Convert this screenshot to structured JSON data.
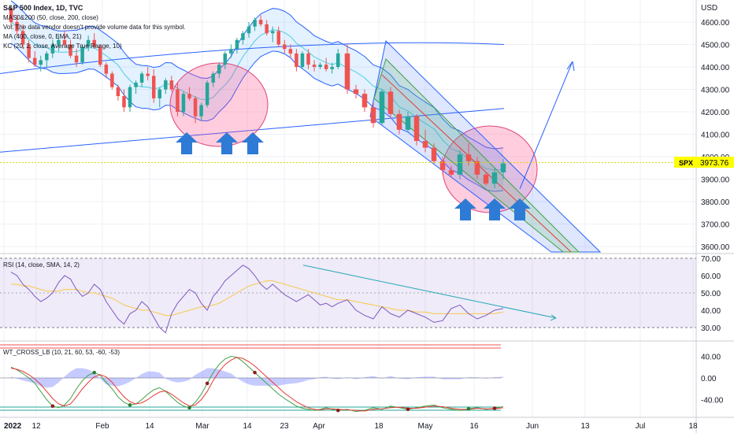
{
  "chart_data": {
    "type": "candlestick",
    "symbol": "SPX",
    "header": {
      "title": "S&P 500 Index, 1D, TVC",
      "lines": [
        "MAS0&200 (50, close, 200, close)",
        "Vol: The data vendor doesn't provide volume data for this symbol.",
        "MA (400, close, 0, EMA, 21)",
        "KC (20, 2, close, Average True Range, 10)"
      ]
    },
    "price_axis": {
      "unit_label": "USD",
      "ticks": [
        4600,
        4500,
        4400,
        4300,
        4200,
        4100,
        4000,
        3900,
        3800,
        3700,
        3600
      ],
      "tick_labels": [
        "4600.00",
        "4500.00",
        "4400.00",
        "4300.00",
        "4200.00",
        "4100.00",
        "4000.00",
        "3900.00",
        "3800.00",
        "3700.00",
        "3600.00"
      ],
      "last_price": 3973.76,
      "last_price_label": "3973.76",
      "symbol_tag": "SPX"
    },
    "time_axis": {
      "labels": [
        "2022",
        "12",
        "Feb",
        "14",
        "Mar",
        "14",
        "23",
        "Apr",
        "18",
        "May",
        "16",
        "Jun",
        "13",
        "Jul",
        "18"
      ]
    },
    "candles_ohlc": [
      [
        4660,
        4670,
        4580,
        4600
      ],
      [
        4600,
        4630,
        4540,
        4560
      ],
      [
        4560,
        4590,
        4480,
        4500
      ],
      [
        4500,
        4520,
        4420,
        4440
      ],
      [
        4440,
        4470,
        4400,
        4410
      ],
      [
        4410,
        4450,
        4380,
        4430
      ],
      [
        4430,
        4470,
        4400,
        4460
      ],
      [
        4460,
        4520,
        4440,
        4500
      ],
      [
        4500,
        4540,
        4470,
        4520
      ],
      [
        4520,
        4560,
        4490,
        4500
      ],
      [
        4500,
        4520,
        4440,
        4450
      ],
      [
        4450,
        4480,
        4400,
        4420
      ],
      [
        4420,
        4500,
        4410,
        4490
      ],
      [
        4490,
        4540,
        4470,
        4520
      ],
      [
        4520,
        4550,
        4480,
        4490
      ],
      [
        4490,
        4500,
        4400,
        4410
      ],
      [
        4410,
        4420,
        4350,
        4370
      ],
      [
        4370,
        4380,
        4300,
        4310
      ],
      [
        4310,
        4320,
        4250,
        4270
      ],
      [
        4270,
        4300,
        4200,
        4220
      ],
      [
        4220,
        4320,
        4200,
        4310
      ],
      [
        4310,
        4340,
        4280,
        4330
      ],
      [
        4330,
        4380,
        4310,
        4370
      ],
      [
        4370,
        4400,
        4340,
        4360
      ],
      [
        4360,
        4390,
        4240,
        4260
      ],
      [
        4260,
        4310,
        4220,
        4300
      ],
      [
        4300,
        4350,
        4280,
        4340
      ],
      [
        4340,
        4360,
        4290,
        4300
      ],
      [
        4300,
        4330,
        4180,
        4200
      ],
      [
        4200,
        4290,
        4180,
        4280
      ],
      [
        4280,
        4310,
        4250,
        4260
      ],
      [
        4260,
        4270,
        4150,
        4180
      ],
      [
        4180,
        4240,
        4160,
        4230
      ],
      [
        4230,
        4340,
        4220,
        4330
      ],
      [
        4330,
        4380,
        4310,
        4370
      ],
      [
        4370,
        4420,
        4350,
        4410
      ],
      [
        4410,
        4470,
        4390,
        4460
      ],
      [
        4460,
        4500,
        4440,
        4480
      ],
      [
        4480,
        4530,
        4460,
        4520
      ],
      [
        4520,
        4560,
        4500,
        4550
      ],
      [
        4550,
        4600,
        4530,
        4580
      ],
      [
        4580,
        4620,
        4560,
        4610
      ],
      [
        4610,
        4630,
        4580,
        4590
      ],
      [
        4590,
        4610,
        4540,
        4550
      ],
      [
        4550,
        4580,
        4510,
        4560
      ],
      [
        4560,
        4580,
        4490,
        4500
      ],
      [
        4500,
        4520,
        4460,
        4480
      ],
      [
        4480,
        4500,
        4440,
        4460
      ],
      [
        4460,
        4480,
        4380,
        4400
      ],
      [
        4400,
        4470,
        4390,
        4460
      ],
      [
        4460,
        4480,
        4390,
        4410
      ],
      [
        4410,
        4430,
        4380,
        4400
      ],
      [
        4400,
        4420,
        4390,
        4410
      ],
      [
        4410,
        4440,
        4380,
        4390
      ],
      [
        4390,
        4420,
        4370,
        4400
      ],
      [
        4400,
        4480,
        4390,
        4460
      ],
      [
        4460,
        4500,
        4280,
        4300
      ],
      [
        4300,
        4320,
        4260,
        4280
      ],
      [
        4280,
        4300,
        4200,
        4220
      ],
      [
        4220,
        4240,
        4130,
        4150
      ],
      [
        4150,
        4300,
        4140,
        4290
      ],
      [
        4290,
        4310,
        4170,
        4190
      ],
      [
        4190,
        4210,
        4100,
        4120
      ],
      [
        4120,
        4200,
        4110,
        4180
      ],
      [
        4180,
        4190,
        4050,
        4070
      ],
      [
        4070,
        4120,
        4020,
        4040
      ],
      [
        4040,
        4060,
        3970,
        3980
      ],
      [
        3980,
        4000,
        3920,
        3940
      ],
      [
        3940,
        3960,
        3910,
        3920
      ],
      [
        3920,
        4030,
        3900,
        4010
      ],
      [
        4010,
        4060,
        3960,
        3980
      ],
      [
        3980,
        4000,
        3900,
        3920
      ],
      [
        3920,
        3930,
        3870,
        3880
      ],
      [
        3880,
        3950,
        3860,
        3930
      ],
      [
        3930,
        3990,
        3900,
        3970
      ]
    ],
    "annotations": {
      "up_arrows": 6,
      "highlight_circles": 2,
      "projection_arrow": "up-right"
    },
    "rsi_panel": {
      "title": "RSI (14, close, SMA, 14, 2)",
      "ticks": [
        70,
        60,
        50,
        40,
        30
      ],
      "tick_labels": [
        "70.00",
        "60.00",
        "50.00",
        "40.00",
        "30.00"
      ],
      "upper_band": 70,
      "lower_band": 30,
      "rsi": [
        62,
        60,
        55,
        52,
        48,
        45,
        47,
        50,
        56,
        60,
        58,
        52,
        48,
        50,
        55,
        52,
        45,
        40,
        35,
        32,
        38,
        40,
        45,
        42,
        36,
        30,
        27,
        38,
        44,
        48,
        52,
        50,
        44,
        40,
        48,
        52,
        57,
        60,
        63,
        66,
        64,
        60,
        55,
        52,
        55,
        52,
        49,
        47,
        45,
        47,
        49,
        46,
        43,
        44,
        42,
        44,
        46,
        40,
        37,
        35,
        42,
        38,
        36,
        40,
        38,
        36,
        33,
        34,
        41,
        43,
        38,
        35,
        37,
        40,
        41
      ],
      "rsi_ma": [
        55,
        55,
        54,
        54,
        53,
        52,
        51,
        51,
        51,
        52,
        52,
        52,
        51,
        50,
        50,
        49,
        48,
        47,
        45,
        43,
        42,
        41,
        40,
        40,
        39,
        38,
        37,
        37,
        38,
        39,
        40,
        41,
        42,
        42,
        43,
        44,
        46,
        48,
        50,
        52,
        54,
        55,
        56,
        57,
        57,
        56,
        55,
        54,
        53,
        52,
        51,
        50,
        49,
        48,
        47,
        46,
        46,
        45,
        44,
        43,
        42,
        41,
        40,
        40,
        39,
        39,
        38,
        38,
        38,
        38,
        38,
        38,
        38,
        38,
        39
      ]
    },
    "wt_panel": {
      "title": "WT_CROSS_LB (10, 21, 60, 53, -60, -53)",
      "ticks": [
        40,
        0,
        -40
      ],
      "tick_labels": [
        "40.00",
        "0.00",
        "-40.00"
      ],
      "overbought_levels": [
        60,
        53
      ],
      "oversold_levels": [
        -60,
        -53
      ],
      "wt1": [
        20,
        15,
        8,
        0,
        -10,
        -25,
        -40,
        -52,
        -55,
        -50,
        -38,
        -20,
        -5,
        5,
        10,
        5,
        -8,
        -20,
        -35,
        -45,
        -50,
        -48,
        -40,
        -30,
        -22,
        -18,
        -25,
        -35,
        -45,
        -52,
        -55,
        -45,
        -30,
        -10,
        10,
        25,
        35,
        40,
        38,
        30,
        20,
        10,
        0,
        -10,
        -20,
        -30,
        -38,
        -45,
        -52,
        -56,
        -58,
        -60,
        -58,
        -55,
        -58,
        -60,
        -58,
        -62,
        -60,
        -55,
        -58,
        -52,
        -55,
        -58,
        -55,
        -52,
        -50,
        -55,
        -58,
        -60,
        -57,
        -55,
        -58,
        -56,
        -53
      ],
      "wt2": [
        18,
        16,
        12,
        6,
        -2,
        -12,
        -25,
        -38,
        -48,
        -52,
        -48,
        -35,
        -20,
        -8,
        2,
        6,
        2,
        -8,
        -22,
        -35,
        -44,
        -48,
        -46,
        -40,
        -32,
        -26,
        -24,
        -30,
        -38,
        -46,
        -52,
        -50,
        -40,
        -25,
        -5,
        12,
        25,
        33,
        38,
        36,
        30,
        22,
        12,
        2,
        -8,
        -18,
        -28,
        -36,
        -44,
        -50,
        -55,
        -58,
        -59,
        -57,
        -57,
        -58,
        -59,
        -60,
        -61,
        -58,
        -57,
        -55,
        -54,
        -56,
        -56,
        -54,
        -52,
        -53,
        -56,
        -58,
        -58,
        -56,
        -57,
        -57,
        -55
      ]
    }
  }
}
